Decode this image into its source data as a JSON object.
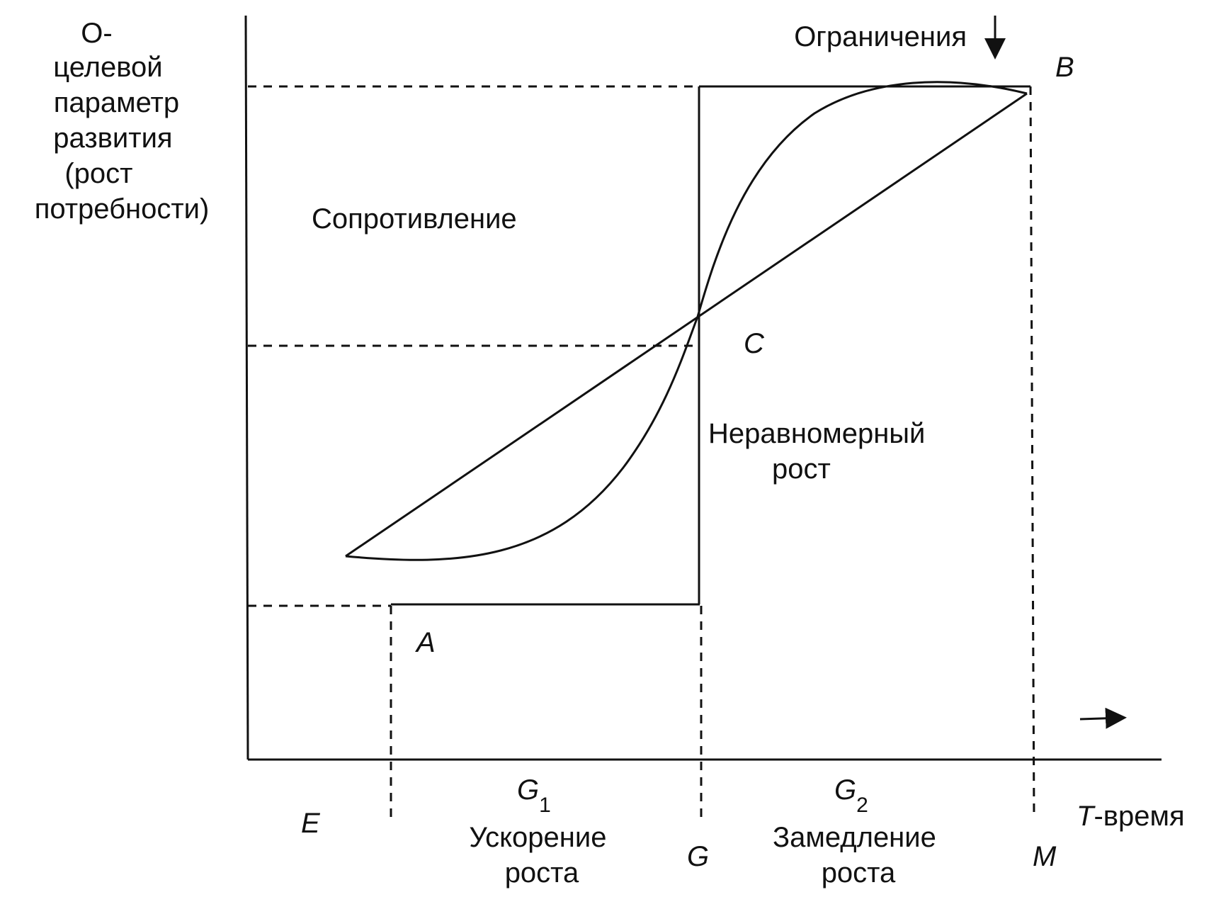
{
  "y_axis_label": [
    "О-",
    "целевой",
    "параметр",
    "развития",
    "(рост",
    "потребности)"
  ],
  "labels": {
    "constraints": "Ограничения",
    "resistance": "Сопротивление",
    "uneven_growth": [
      "Неравномерный",
      "рост"
    ],
    "acceleration": [
      "Ускорение",
      "роста"
    ],
    "deceleration": [
      "Замедление",
      "роста"
    ],
    "time_axis": "-время"
  },
  "points": {
    "A": "A",
    "B": "B",
    "C": "C",
    "E": "E",
    "G": "G",
    "M": "M",
    "T": "T"
  },
  "segments": {
    "G1_letter": "G",
    "G1_sub": "1",
    "G2_letter": "G",
    "G2_sub": "2"
  }
}
